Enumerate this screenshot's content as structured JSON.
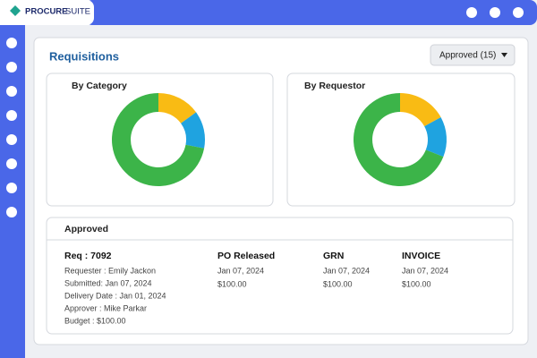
{
  "header": {
    "brand": "PROCURE",
    "brand_suffix": "SUITE"
  },
  "page": {
    "title": "Requisitions",
    "filter": "Approved (15)"
  },
  "charts": [
    {
      "type": "donut",
      "title": "By Category",
      "values": [
        15,
        13,
        72
      ],
      "colors": [
        "#f9bb14",
        "#1fa3e0",
        "#3cb449"
      ]
    },
    {
      "type": "donut",
      "title": "By Requestor",
      "values": [
        17,
        14,
        69
      ],
      "colors": [
        "#f9bb14",
        "#1fa3e0",
        "#3cb449"
      ]
    }
  ],
  "approved": {
    "title": "Approved",
    "request": {
      "id": "Req : 7092",
      "details": [
        "Requester : Emily Jackon",
        "Submitted: Jan 07, 2024",
        "Delivery Date :  Jan 01, 2024",
        "Approver : Mike Parkar",
        "Budget : $100.00"
      ]
    },
    "stages": [
      {
        "name": "PO Released",
        "date": "Jan 07, 2024",
        "amount": "$100.00"
      },
      {
        "name": "GRN",
        "date": "Jan 07, 2024",
        "amount": "$100.00"
      },
      {
        "name": "INVOICE",
        "date": "Jan 07, 2024",
        "amount": "$100.00"
      }
    ]
  }
}
